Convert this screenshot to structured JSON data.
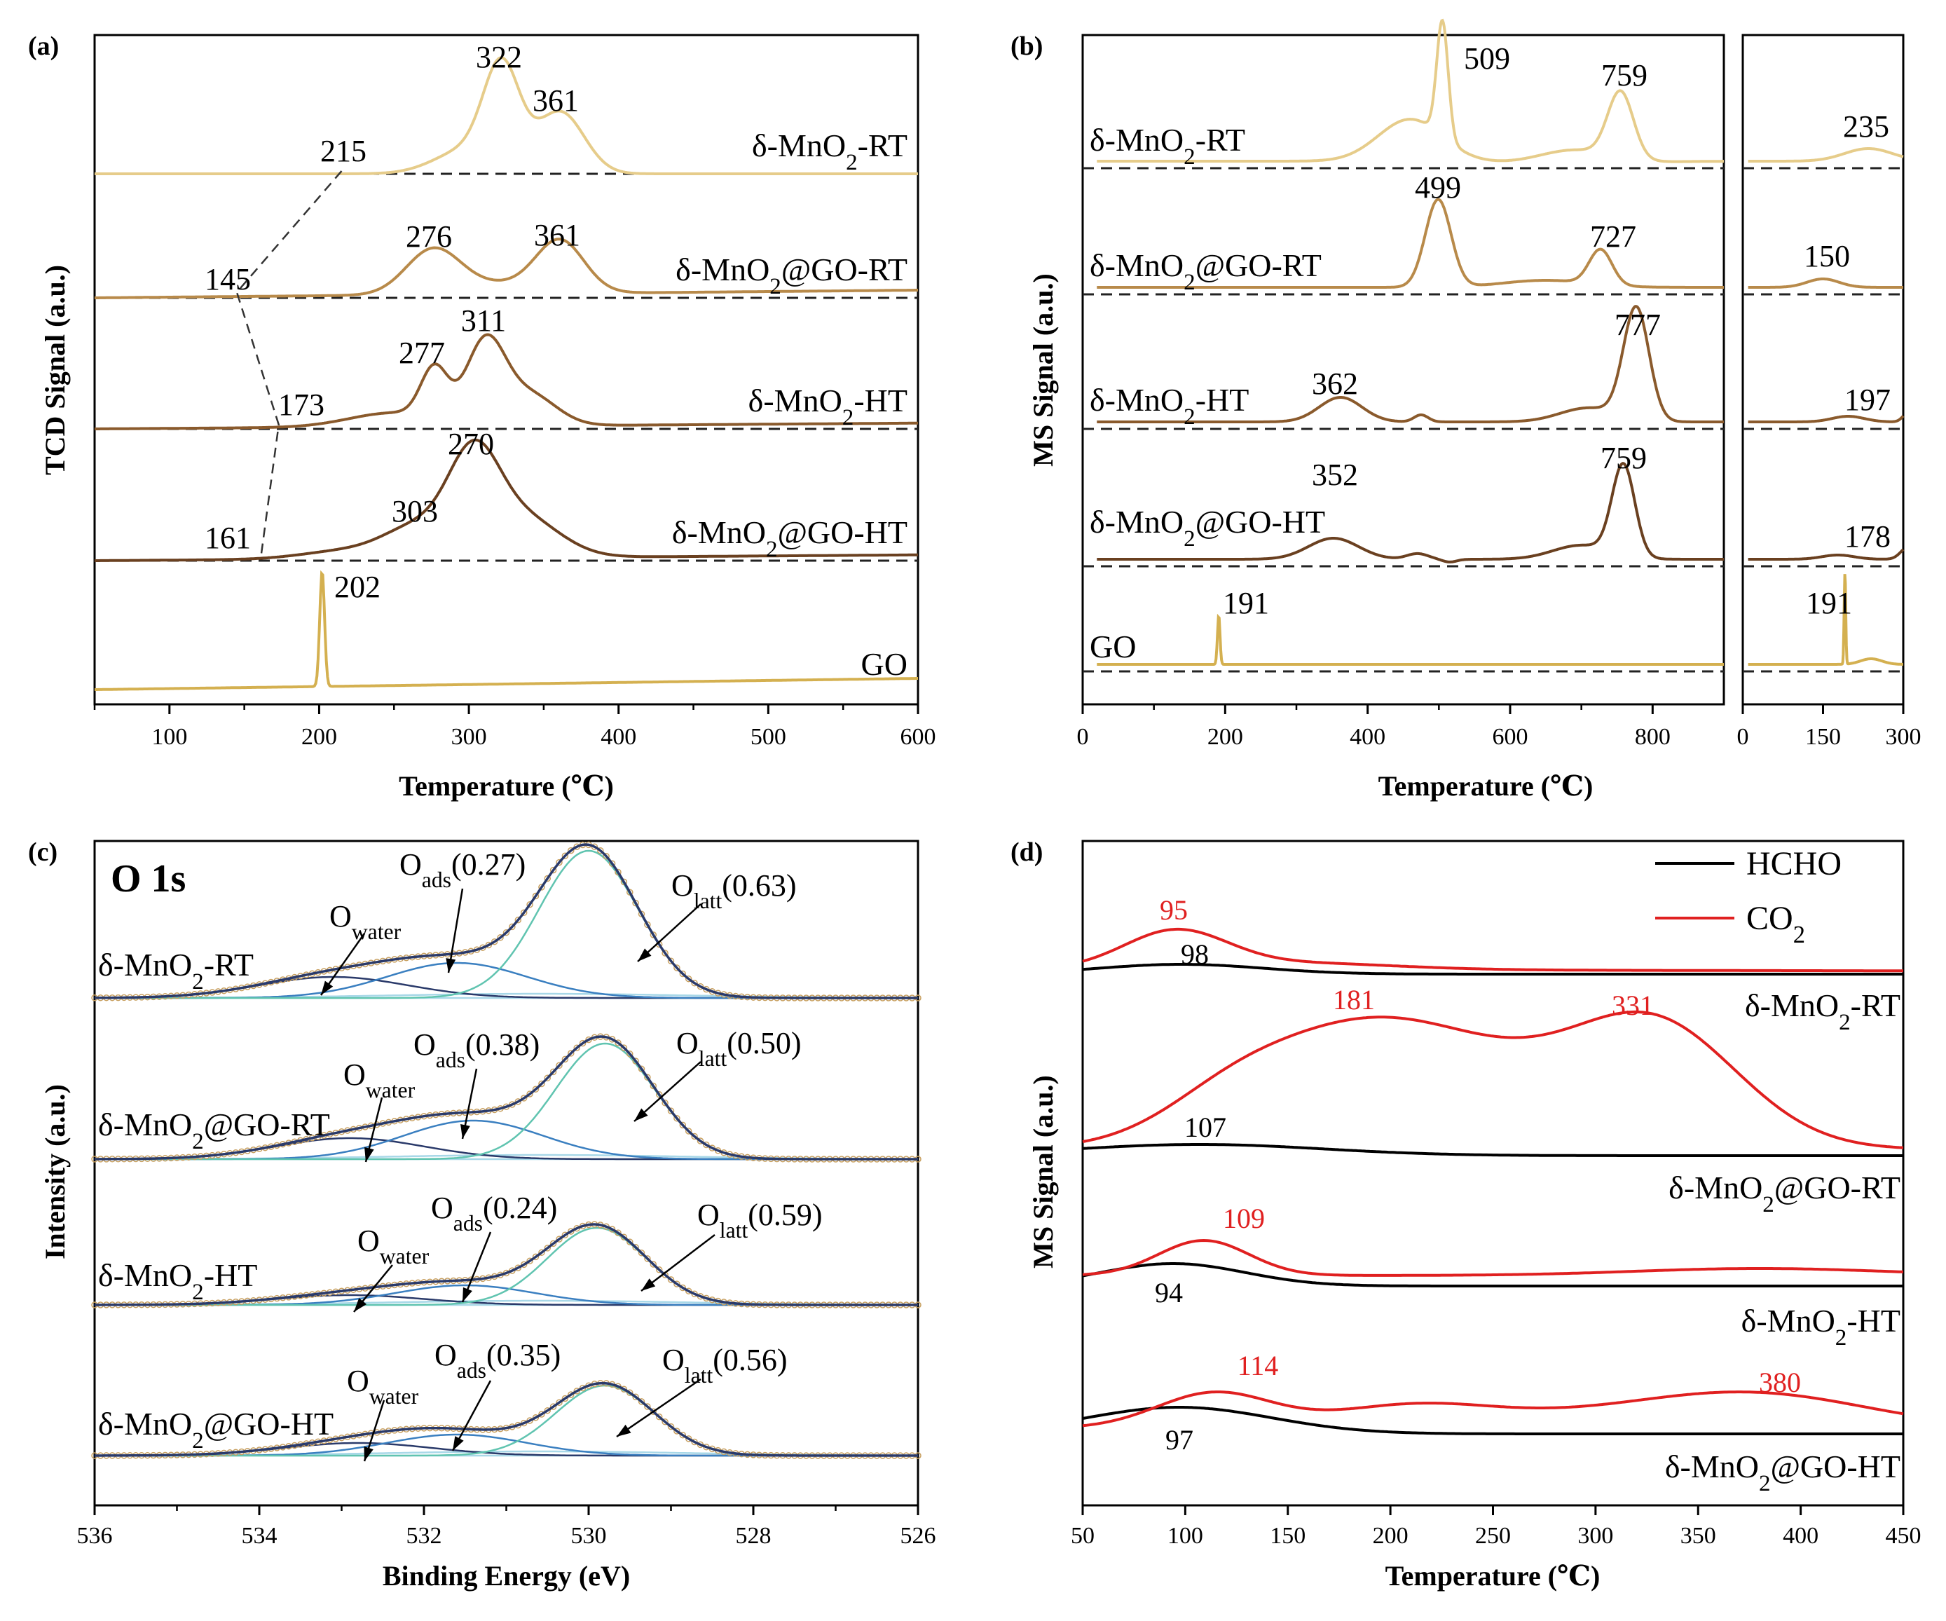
{
  "colors": {
    "axis": "#000000",
    "rt": "#e6cc8a",
    "gort": "#b88a4a",
    "ht": "#8a5a2c",
    "goht": "#6a4020",
    "go": "#d4b050",
    "fit_dark": "#2a3a6a",
    "fit_blue": "#3a7fc0",
    "fit_teal": "#60c4b0",
    "fit_light": "#a8d8e8",
    "hcho": "#000000",
    "co2": "#e02020",
    "baseline": "#222222",
    "data_point": "#c8a060"
  },
  "chart_data": [
    {
      "panel_label": "(a)",
      "type": "line",
      "xlabel": "Temperature (℃)",
      "ylabel": "TCD Signal (a.u.)",
      "xlim": [
        50,
        600
      ],
      "xticks": [
        "100",
        "200",
        "300",
        "400",
        "500",
        "600"
      ],
      "series": [
        {
          "name": "δ-MnO2-RT",
          "label_main": "δ-MnO",
          "label_sub": "2",
          "label_tail": "-RT",
          "peaks": [
            322,
            361
          ],
          "peak_labels": [
            "322",
            "361"
          ],
          "onset": 215,
          "onset_label": "215"
        },
        {
          "name": "δ-MnO2@GO-RT",
          "label_main": "δ-MnO",
          "label_sub": "2",
          "label_tail": "@GO-RT",
          "peaks": [
            276,
            361
          ],
          "peak_labels": [
            "276",
            "361"
          ],
          "onset": 145,
          "onset_label": "145"
        },
        {
          "name": "δ-MnO2-HT",
          "label_main": "δ-MnO",
          "label_sub": "2",
          "label_tail": "-HT",
          "peaks": [
            277,
            311
          ],
          "peak_labels": [
            "277",
            "311"
          ],
          "onset": 173,
          "onset_label": "173"
        },
        {
          "name": "δ-MnO2@GO-HT",
          "label_main": "δ-MnO",
          "label_sub": "2",
          "label_tail": "@GO-HT",
          "peaks": [
            270,
            303
          ],
          "peak_labels": [
            "270",
            "303"
          ],
          "onset": 161,
          "onset_label": "161"
        },
        {
          "name": "GO",
          "label_main": "GO",
          "label_sub": "",
          "label_tail": "",
          "peaks": [
            202
          ],
          "peak_labels": [
            "202"
          ],
          "onset": null,
          "onset_label": ""
        }
      ]
    },
    {
      "panel_label": "(b)",
      "type": "line",
      "xlabel": "Temperature (℃)",
      "ylabel": "MS Signal (a.u.)",
      "xlim_main": [
        0,
        900
      ],
      "xlim_inset": [
        0,
        300
      ],
      "xticks_main": [
        "0",
        "200",
        "400",
        "600",
        "800"
      ],
      "xticks_inset": [
        "0",
        "150",
        "300"
      ],
      "series": [
        {
          "name": "δ-MnO2-RT",
          "label_main": "δ-MnO",
          "label_sub": "2",
          "label_tail": "-RT",
          "peaks": [
            509,
            759
          ],
          "peak_labels": [
            "509",
            "759"
          ],
          "inset_peak": 235,
          "inset_label": "235"
        },
        {
          "name": "δ-MnO2@GO-RT",
          "label_main": "δ-MnO",
          "label_sub": "2",
          "label_tail": "@GO-RT",
          "peaks": [
            499,
            727
          ],
          "peak_labels": [
            "499",
            "727"
          ],
          "inset_peak": 150,
          "inset_label": "150"
        },
        {
          "name": "δ-MnO2-HT",
          "label_main": "δ-MnO",
          "label_sub": "2",
          "label_tail": "-HT",
          "peaks": [
            362,
            777
          ],
          "peak_labels": [
            "362",
            "777"
          ],
          "inset_peak": 197,
          "inset_label": "197"
        },
        {
          "name": "δ-MnO2@GO-HT",
          "label_main": "δ-MnO",
          "label_sub": "2",
          "label_tail": "@GO-HT",
          "peaks": [
            352,
            759
          ],
          "peak_labels": [
            "352",
            "759"
          ],
          "inset_peak": 178,
          "inset_label": "178"
        },
        {
          "name": "GO",
          "label_main": "GO",
          "label_sub": "",
          "label_tail": "",
          "peaks": [
            191
          ],
          "peak_labels": [
            "191"
          ],
          "inset_peak": 191,
          "inset_label": "191"
        }
      ]
    },
    {
      "panel_label": "(c)",
      "type": "line",
      "title": "O 1s",
      "xlabel": "Binding Energy (eV)",
      "ylabel": "Intensity (a.u.)",
      "xlim": [
        536,
        526
      ],
      "xticks": [
        "536",
        "534",
        "532",
        "530",
        "528",
        "526"
      ],
      "series": [
        {
          "name": "δ-MnO2-RT",
          "label_main": "δ-MnO",
          "label_sub": "2",
          "label_tail": "-RT",
          "o_water": 533.1,
          "o_ads": 531.6,
          "o_latt": 530.0,
          "ads_ratio": "(0.27)",
          "latt_ratio": "(0.63)"
        },
        {
          "name": "δ-MnO2@GO-RT",
          "label_main": "δ-MnO",
          "label_sub": "2",
          "label_tail": "@GO-RT",
          "o_water": 532.9,
          "o_ads": 531.4,
          "o_latt": 529.8,
          "ads_ratio": "(0.38)",
          "latt_ratio": "(0.50)"
        },
        {
          "name": "δ-MnO2-HT",
          "label_main": "δ-MnO",
          "label_sub": "2",
          "label_tail": "-HT",
          "o_water": 532.9,
          "o_ads": 531.5,
          "o_latt": 529.9,
          "ads_ratio": "(0.24)",
          "latt_ratio": "(0.59)"
        },
        {
          "name": "δ-MnO2@GO-HT",
          "label_main": "δ-MnO",
          "label_sub": "2",
          "label_tail": "@GO-HT",
          "o_water": 532.8,
          "o_ads": 531.6,
          "o_latt": 529.8,
          "ads_ratio": "(0.35)",
          "latt_ratio": "(0.56)"
        }
      ],
      "component_labels": {
        "water": "water",
        "ads": "ads",
        "latt": "latt",
        "O": "O"
      }
    },
    {
      "panel_label": "(d)",
      "type": "line",
      "xlabel": "Temperature (℃)",
      "ylabel": "MS Signal (a.u.)",
      "xlim": [
        50,
        450
      ],
      "xticks": [
        "50",
        "100",
        "150",
        "200",
        "250",
        "300",
        "350",
        "400",
        "450"
      ],
      "legend": [
        {
          "name": "HCHO",
          "label_main": "HCHO",
          "label_sub": ""
        },
        {
          "name": "CO2",
          "label_main": "CO",
          "label_sub": "2"
        }
      ],
      "legend_position": "top-right",
      "series": [
        {
          "name": "δ-MnO2-RT",
          "label_main": "δ-MnO",
          "label_sub": "2",
          "label_tail": "-RT",
          "hcho_peak": 98,
          "hcho_label": "98",
          "co2_peaks": [
            95
          ],
          "co2_labels": [
            "95"
          ]
        },
        {
          "name": "δ-MnO2@GO-RT",
          "label_main": "δ-MnO",
          "label_sub": "2",
          "label_tail": "@GO-RT",
          "hcho_peak": 107,
          "hcho_label": "107",
          "co2_peaks": [
            181,
            331
          ],
          "co2_labels": [
            "181",
            "331"
          ]
        },
        {
          "name": "δ-MnO2-HT",
          "label_main": "δ-MnO",
          "label_sub": "2",
          "label_tail": "-HT",
          "hcho_peak": 94,
          "hcho_label": "94",
          "co2_peaks": [
            109
          ],
          "co2_labels": [
            "109"
          ]
        },
        {
          "name": "δ-MnO2@GO-HT",
          "label_main": "δ-MnO",
          "label_sub": "2",
          "label_tail": "@GO-HT",
          "hcho_peak": 97,
          "hcho_label": "97",
          "co2_peaks": [
            114,
            380
          ],
          "co2_labels": [
            "114",
            "380"
          ]
        }
      ]
    }
  ]
}
